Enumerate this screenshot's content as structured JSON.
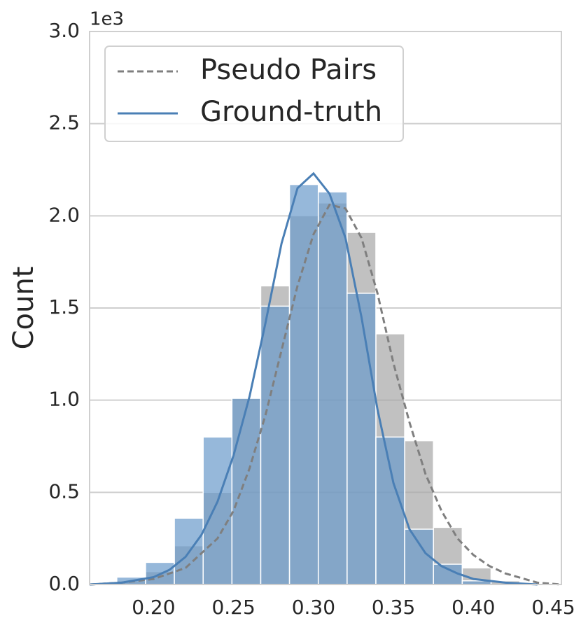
{
  "chart_data": {
    "type": "histogram",
    "ylabel": "Count",
    "y_offset_label": "1e3",
    "xlim": [
      0.16,
      0.455
    ],
    "ylim": [
      0,
      3.0
    ],
    "xticks": [
      {
        "value": 0.2,
        "label": "0.20"
      },
      {
        "value": 0.25,
        "label": "0.25"
      },
      {
        "value": 0.3,
        "label": "0.30"
      },
      {
        "value": 0.35,
        "label": "0.35"
      },
      {
        "value": 0.4,
        "label": "0.40"
      },
      {
        "value": 0.45,
        "label": "0.45"
      }
    ],
    "yticks": [
      {
        "value": 0,
        "label": "0.0"
      },
      0.5,
      {
        "value": 1,
        "label": "1.0"
      },
      1.5,
      {
        "value": 2,
        "label": "2.0"
      },
      2.5,
      {
        "value": 3,
        "label": "3.0"
      }
    ],
    "grid": true,
    "legend": "upper left",
    "bins": [
      0.177,
      0.195,
      0.213,
      0.231,
      0.249,
      0.267,
      0.285,
      0.303,
      0.321,
      0.339,
      0.357,
      0.375,
      0.393,
      0.411,
      0.429
    ],
    "series": [
      {
        "color": "#a6a6a6",
        "values": [
          0.02,
          0.07,
          0.21,
          0.5,
          1.01,
          1.62,
          2.0,
          2.07,
          1.91,
          1.36,
          0.78,
          0.31,
          0.09,
          0.02
        ]
      },
      {
        "color": "#6a9acb",
        "values": [
          0.04,
          0.12,
          0.36,
          0.8,
          1.01,
          1.51,
          2.17,
          2.13,
          1.58,
          0.8,
          0.3,
          0.11,
          0.02,
          0
        ]
      }
    ],
    "lines": [
      {
        "name": "Pseudo Pairs",
        "color": "#7f7f7f",
        "dashed": true,
        "x": [
          0.16,
          0.18,
          0.2,
          0.22,
          0.24,
          0.25,
          0.26,
          0.27,
          0.28,
          0.29,
          0.3,
          0.31,
          0.32,
          0.33,
          0.34,
          0.35,
          0.36,
          0.37,
          0.38,
          0.39,
          0.4,
          0.41,
          0.42,
          0.44,
          0.455
        ],
        "values": [
          0,
          0.01,
          0.03,
          0.09,
          0.25,
          0.4,
          0.63,
          0.92,
          1.27,
          1.62,
          1.9,
          2.06,
          2.04,
          1.88,
          1.58,
          1.2,
          0.88,
          0.6,
          0.4,
          0.25,
          0.16,
          0.1,
          0.06,
          0.01,
          0
        ]
      },
      {
        "name": "Ground-truth",
        "color": "#4a7fb5",
        "dashed": false,
        "x": [
          0.16,
          0.18,
          0.2,
          0.21,
          0.22,
          0.23,
          0.24,
          0.25,
          0.26,
          0.27,
          0.28,
          0.29,
          0.3,
          0.31,
          0.32,
          0.33,
          0.34,
          0.35,
          0.36,
          0.37,
          0.38,
          0.39,
          0.4,
          0.42,
          0.44
        ],
        "values": [
          0,
          0.01,
          0.04,
          0.08,
          0.15,
          0.27,
          0.45,
          0.7,
          1.02,
          1.42,
          1.85,
          2.15,
          2.23,
          2.12,
          1.88,
          1.45,
          0.95,
          0.55,
          0.3,
          0.17,
          0.1,
          0.06,
          0.03,
          0.01,
          0
        ]
      }
    ]
  }
}
